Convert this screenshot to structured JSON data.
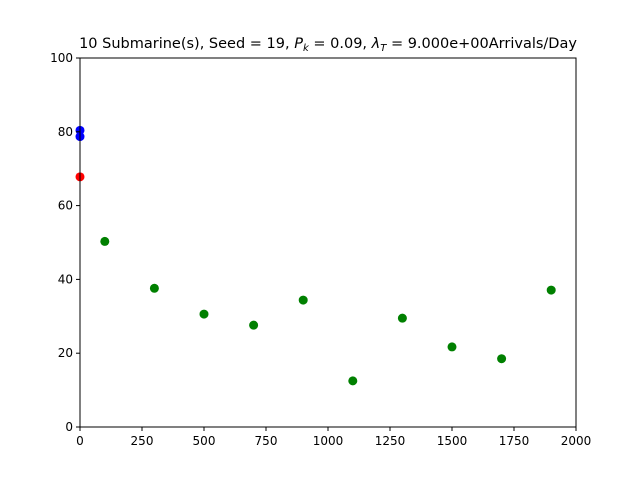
{
  "chart_data": {
    "type": "scatter",
    "title": "10 Submarine(s), Seed = 19, P_k = 0.09, λ_T = 9.000e+00Arrivals/Day",
    "xlabel": "",
    "ylabel": "",
    "xlim": [
      0,
      2000
    ],
    "ylim": [
      0,
      100
    ],
    "xticks": [
      0,
      250,
      500,
      750,
      1000,
      1250,
      1500,
      1750,
      2000
    ],
    "yticks": [
      0,
      20,
      40,
      60,
      80,
      100
    ],
    "grid": false,
    "series": [
      {
        "color": "#0000ff",
        "points": [
          [
            0,
            80.4
          ],
          [
            0,
            78.7
          ]
        ]
      },
      {
        "color": "#ff0000",
        "points": [
          [
            0,
            67.8
          ]
        ]
      },
      {
        "color": "#008000",
        "points": [
          [
            100,
            50.3
          ],
          [
            300,
            37.6
          ],
          [
            500,
            30.6
          ],
          [
            700,
            27.6
          ],
          [
            900,
            34.4
          ],
          [
            1100,
            12.5
          ],
          [
            1300,
            29.5
          ],
          [
            1500,
            21.7
          ],
          [
            1700,
            18.5
          ],
          [
            1900,
            37.1
          ]
        ]
      }
    ]
  }
}
